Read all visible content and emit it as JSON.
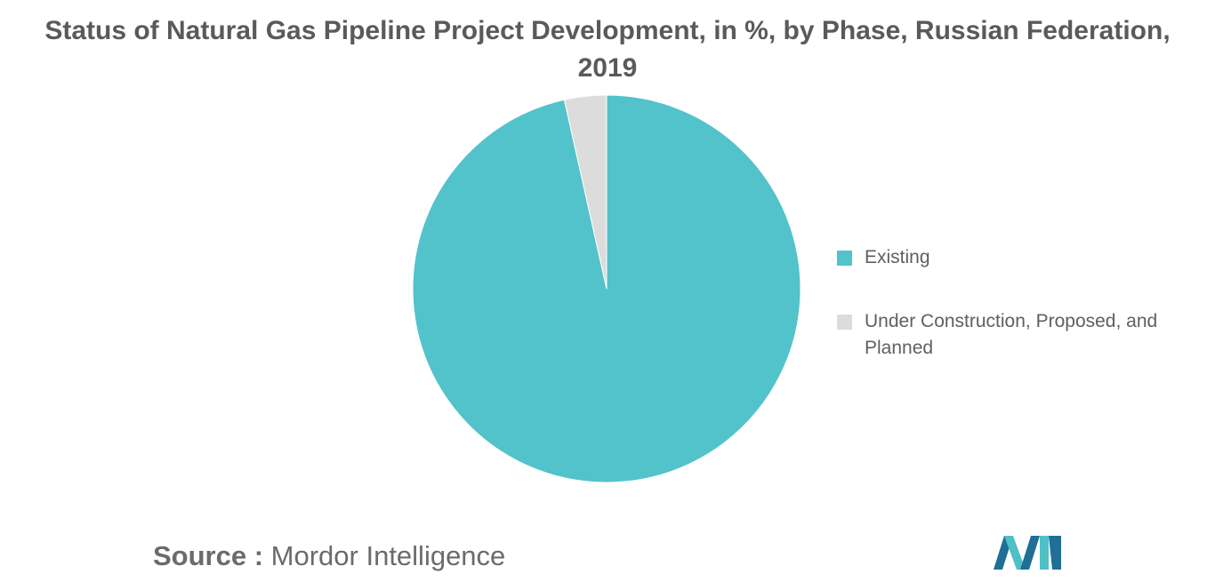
{
  "title": {
    "line1": "Status of Natural Gas Pipeline Project Development, in %, by Phase, Russian Federation,",
    "line2": "2019"
  },
  "chart_data": {
    "type": "pie",
    "title": "Status of Natural Gas Pipeline Project Development, in %, by Phase, Russian Federation, 2019",
    "legend_position": "right",
    "start_angle_deg": 0,
    "direction": "clockwise",
    "slices": [
      {
        "label": "Existing",
        "value": 96.5,
        "color": "#52c3ca"
      },
      {
        "label": "Under Construction, Proposed, and Planned",
        "value": 3.5,
        "color": "#dcdcdc"
      }
    ]
  },
  "legend": {
    "items": [
      {
        "label": "Existing",
        "color": "#52c3ca"
      },
      {
        "label": "Under Construction, Proposed, and Planned",
        "color": "#dcdcdc"
      }
    ]
  },
  "source": {
    "label": "Source :",
    "text": "Mordor Intelligence"
  },
  "logo": {
    "icon": "mordor-intelligence-logo-icon",
    "colors": [
      "#1f6f96",
      "#4fc0c6"
    ]
  }
}
